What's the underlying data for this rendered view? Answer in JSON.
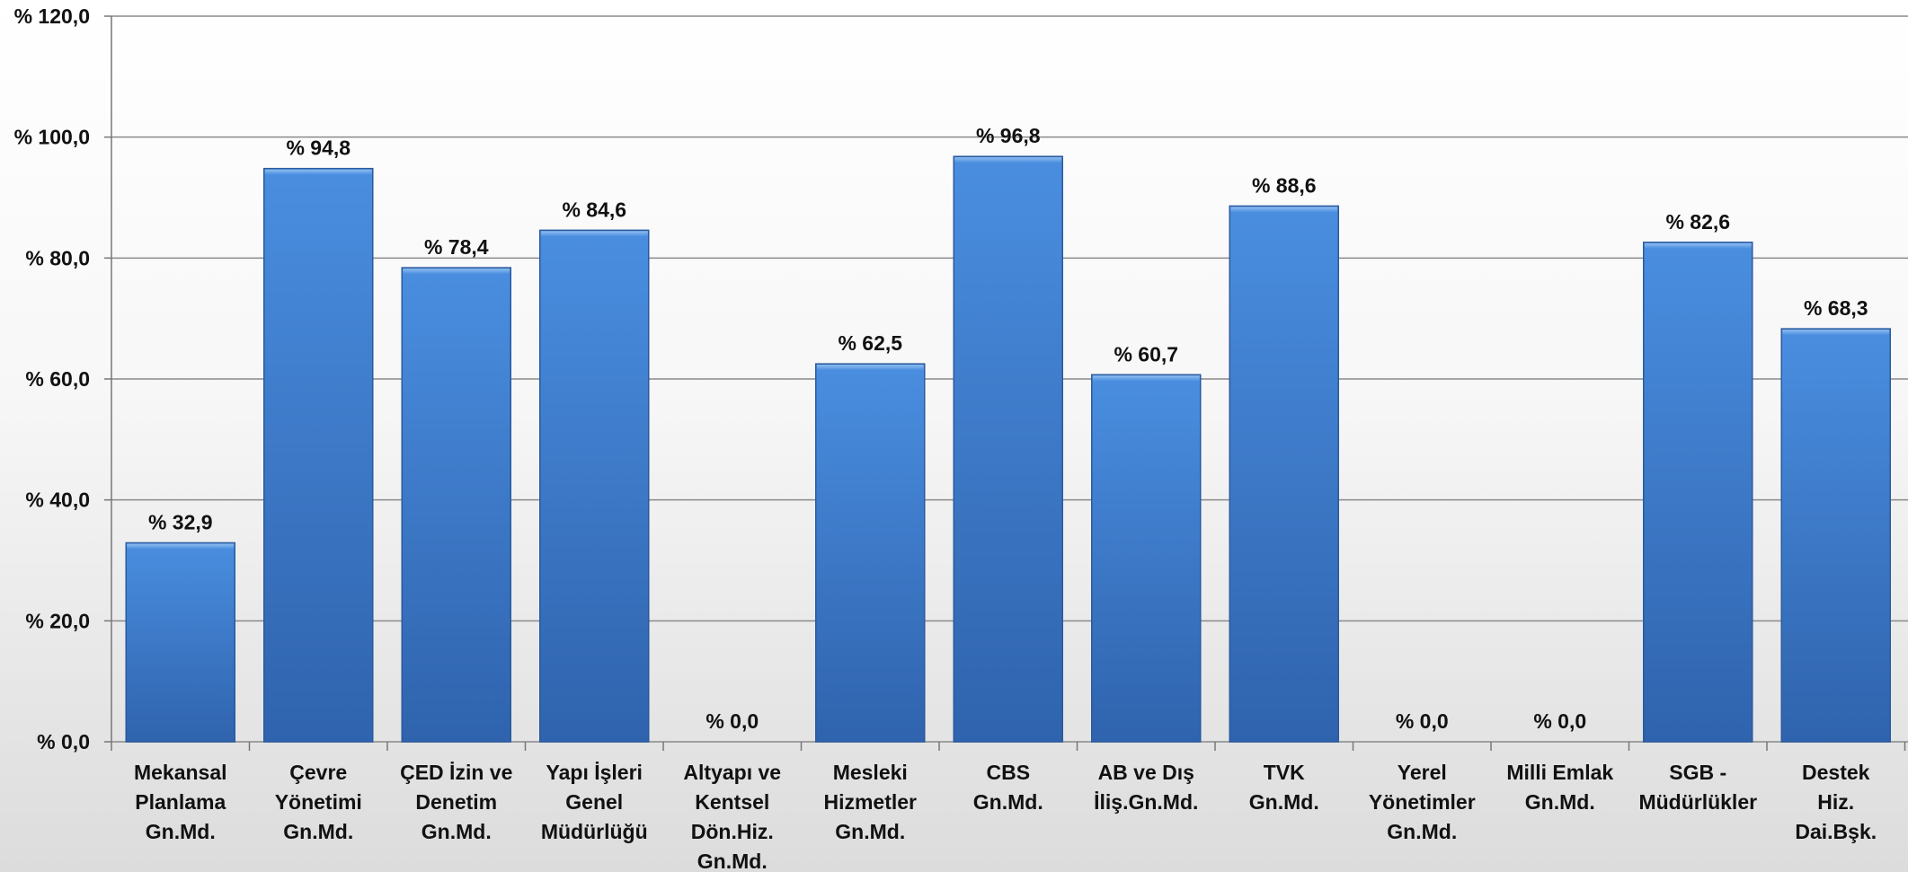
{
  "chart_data": {
    "type": "bar",
    "title": "",
    "xlabel": "",
    "ylabel": "",
    "ylim": [
      0,
      120
    ],
    "y_ticks": [
      0,
      20,
      40,
      60,
      80,
      100,
      120
    ],
    "y_tick_labels": [
      "% 0,0",
      "% 20,0",
      "% 40,0",
      "% 60,0",
      "% 80,0",
      "% 100,0",
      "% 120,0"
    ],
    "grid": true,
    "bar_color": "#3a7bd0",
    "categories": [
      [
        "Mekansal",
        "Planlama",
        "Gn.Md."
      ],
      [
        "Çevre",
        "Yönetimi",
        "Gn.Md."
      ],
      [
        "ÇED İzin ve",
        "Denetim",
        "Gn.Md."
      ],
      [
        "Yapı İşleri",
        "Genel",
        "Müdürlüğü"
      ],
      [
        "Altyapı ve",
        "Kentsel",
        "Dön.Hiz.",
        "Gn.Md."
      ],
      [
        "Mesleki",
        "Hizmetler",
        "Gn.Md."
      ],
      [
        "CBS",
        "Gn.Md."
      ],
      [
        "AB ve Dış",
        "İliş.Gn.Md."
      ],
      [
        "TVK",
        "Gn.Md."
      ],
      [
        "Yerel",
        "Yönetimler",
        "Gn.Md."
      ],
      [
        "Milli Emlak",
        "Gn.Md."
      ],
      [
        "SGB -",
        "Müdürlükler"
      ],
      [
        "Destek",
        "Hiz.",
        "Dai.Bşk."
      ]
    ],
    "values": [
      32.9,
      94.8,
      78.4,
      84.6,
      0.0,
      62.5,
      96.8,
      60.7,
      88.6,
      0.0,
      0.0,
      82.6,
      68.3
    ],
    "data_labels": [
      "% 32,9",
      "% 94,8",
      "% 78,4",
      "% 84,6",
      "% 0,0",
      "% 62,5",
      "% 96,8",
      "% 60,7",
      "% 88,6",
      "% 0,0",
      "% 0,0",
      "% 82,6",
      "% 68,3"
    ]
  }
}
